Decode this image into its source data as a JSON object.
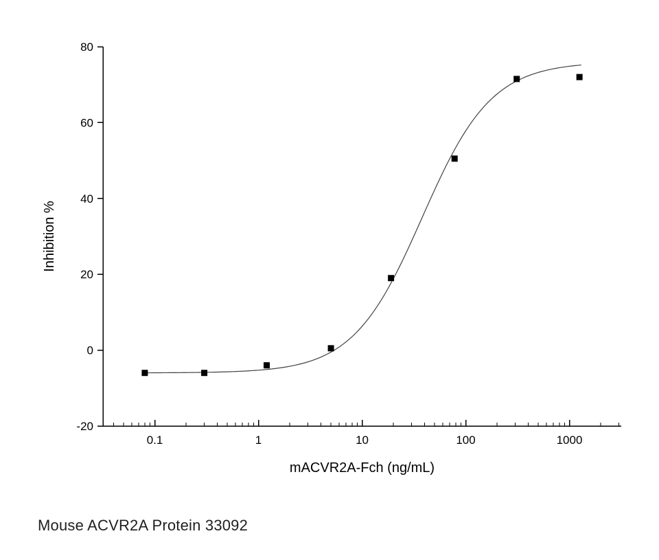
{
  "page": {
    "background": "#ffffff"
  },
  "caption": "Mouse ACVR2A Protein 33092",
  "chart_data": {
    "type": "scatter",
    "title": "",
    "xlabel": "mACVR2A-Fch (ng/mL)",
    "ylabel": "Inhibition %",
    "x_scale": "log",
    "xlim": [
      0.0316,
      3162
    ],
    "ylim": [
      -20,
      80
    ],
    "y_ticks": [
      -20,
      0,
      20,
      40,
      60,
      80
    ],
    "x_major_ticks": [
      0.1,
      1,
      10,
      100,
      1000
    ],
    "x_tick_labels": [
      "0.1",
      "1",
      "10",
      "100",
      "1000"
    ],
    "grid": false,
    "legend": false,
    "marker": {
      "shape": "square",
      "color": "#000000",
      "size": 9
    },
    "points": [
      {
        "x": 0.08,
        "y": -6
      },
      {
        "x": 0.3,
        "y": -6
      },
      {
        "x": 1.2,
        "y": -4
      },
      {
        "x": 5,
        "y": 0.5
      },
      {
        "x": 19,
        "y": 19
      },
      {
        "x": 78,
        "y": 50.5
      },
      {
        "x": 310,
        "y": 71.5
      },
      {
        "x": 1250,
        "y": 72
      }
    ],
    "fit_curve": {
      "model": "4PL",
      "bottom": -6,
      "top": 76,
      "ec50": 38,
      "hill": 1.3,
      "x_start": 0.075,
      "x_end": 1300,
      "color": "#404040"
    }
  }
}
